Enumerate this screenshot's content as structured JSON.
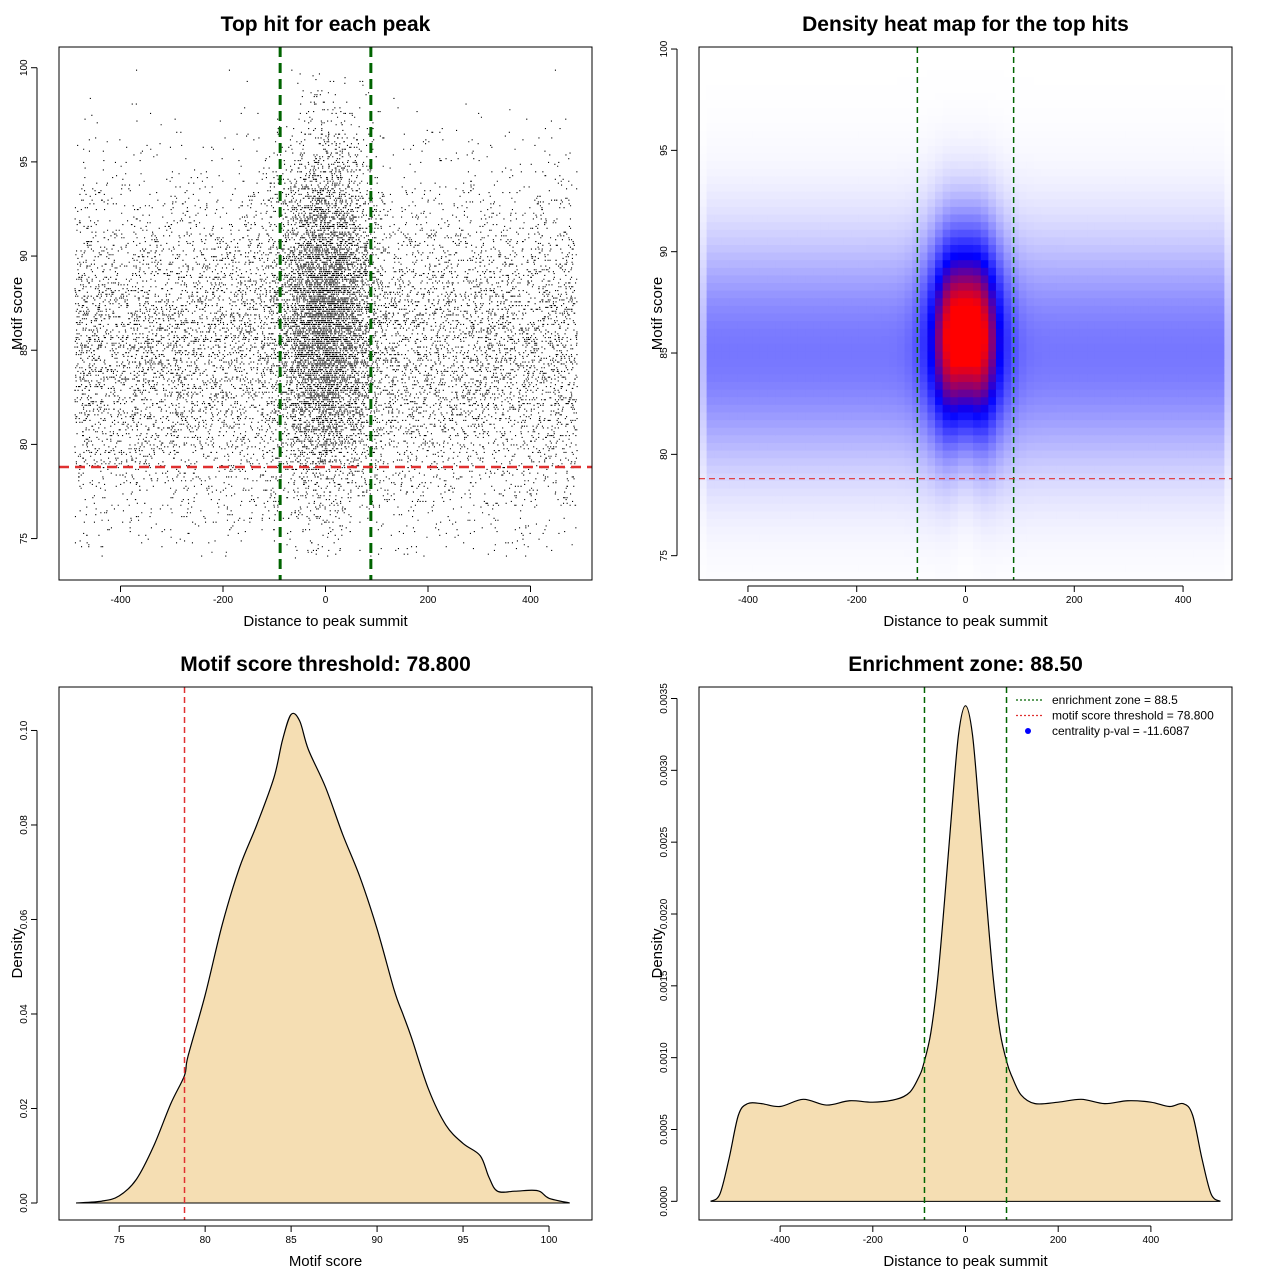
{
  "chart_data": [
    {
      "id": "p1",
      "type": "scatter",
      "title": "Top hit for each peak",
      "xlabel": "Distance to peak summit",
      "ylabel": "Motif score",
      "xlim": [
        -520,
        520
      ],
      "ylim": [
        72.8,
        101.1
      ],
      "xticks": [
        -400,
        -200,
        0,
        200,
        400
      ],
      "yticks": [
        75,
        80,
        85,
        90,
        95,
        100
      ],
      "n_points_approx": 42000,
      "x_range": [
        -490,
        490
      ],
      "y_range": [
        74,
        100
      ],
      "distribution": {
        "background": {
          "x_uniform": [
            -490,
            490
          ],
          "y_mode": 85,
          "y_spread": 4.5
        },
        "center_cluster": {
          "x_center": 0,
          "x_spread": 45,
          "y_mode": 87,
          "y_spread": 4.5
        }
      },
      "vlines": [
        {
          "x": -88.5,
          "color": "#006400",
          "style": "dashed"
        },
        {
          "x": 88.5,
          "color": "#006400",
          "style": "dashed"
        }
      ],
      "hlines": [
        {
          "y": 78.8,
          "color": "#e03030",
          "style": "dashed"
        }
      ],
      "grid": false
    },
    {
      "id": "p2",
      "type": "heatmap",
      "title": "Density heat map for the top hits",
      "xlabel": "Distance to peak summit",
      "ylabel": "Motif score",
      "xlim": [
        -490,
        490
      ],
      "ylim": [
        73.8,
        100.1
      ],
      "xticks": [
        -400,
        -200,
        0,
        200,
        400
      ],
      "yticks": [
        75,
        80,
        85,
        90,
        95,
        100
      ],
      "colormap": [
        "#ffffff",
        "#0000ff",
        "#ff0000"
      ],
      "density": {
        "background_band": {
          "y_mode": 85,
          "y_spread": 4
        },
        "peak": {
          "x": 0,
          "y": 86,
          "x_spread": 40,
          "y_spread": 3.5
        }
      },
      "vlines": [
        {
          "x": -88.5,
          "color": "#006400",
          "style": "dashed"
        },
        {
          "x": 88.5,
          "color": "#006400",
          "style": "dashed"
        }
      ],
      "hlines": [
        {
          "y": 78.8,
          "color": "#e03030",
          "style": "dashed"
        }
      ],
      "grid": false
    },
    {
      "id": "p3",
      "type": "area",
      "title": "Motif score threshold: 78.800",
      "xlabel": "Motif score",
      "ylabel": "Density",
      "xlim": [
        71.5,
        102.5
      ],
      "ylim": [
        -0.0036,
        0.1092
      ],
      "xticks": [
        75,
        80,
        85,
        90,
        95,
        100
      ],
      "yticks": [
        0.0,
        0.02,
        0.04,
        0.06,
        0.08,
        0.1
      ],
      "ytick_labels": [
        "0.00",
        "0.02",
        "0.04",
        "0.06",
        "0.08",
        "0.10"
      ],
      "x": [
        72.5,
        74,
        75,
        76,
        77,
        78,
        78.8,
        79,
        80,
        81,
        82,
        83,
        84,
        84.5,
        85,
        85.5,
        86,
        87,
        88,
        89,
        90,
        91,
        91.5,
        92,
        93,
        94,
        95,
        96,
        96.5,
        97,
        98,
        99,
        99.5,
        100,
        101.2
      ],
      "y": [
        0.0,
        0.0004,
        0.0015,
        0.005,
        0.012,
        0.021,
        0.027,
        0.031,
        0.044,
        0.059,
        0.071,
        0.08,
        0.09,
        0.098,
        0.1034,
        0.102,
        0.096,
        0.088,
        0.078,
        0.069,
        0.058,
        0.045,
        0.04,
        0.035,
        0.024,
        0.0165,
        0.0126,
        0.01,
        0.0055,
        0.0025,
        0.0025,
        0.0027,
        0.0024,
        0.001,
        0.0
      ],
      "fill": "#f5deb3",
      "vlines": [
        {
          "x": 78.8,
          "color": "#e03030",
          "style": "dashed"
        }
      ],
      "grid": false
    },
    {
      "id": "p4",
      "type": "area",
      "title": "Enrichment zone: 88.50",
      "xlabel": "Distance to peak summit",
      "ylabel": "Density",
      "xlim": [
        -575,
        575
      ],
      "ylim": [
        -0.00013,
        0.00358
      ],
      "xticks": [
        -400,
        -200,
        0,
        200,
        400
      ],
      "yticks": [
        0.0,
        0.0005,
        0.001,
        0.0015,
        0.002,
        0.0025,
        0.003,
        0.0035
      ],
      "ytick_labels": [
        "0.0000",
        "0.0005",
        "0.0010",
        "0.0015",
        "0.0020",
        "0.0025",
        "0.0030",
        "0.0035"
      ],
      "x": [
        -550,
        -530,
        -510,
        -490,
        -470,
        -440,
        -400,
        -350,
        -300,
        -250,
        -200,
        -150,
        -120,
        -100,
        -90,
        -75,
        -60,
        -45,
        -30,
        -15,
        0,
        15,
        30,
        45,
        60,
        75,
        90,
        100,
        120,
        150,
        200,
        250,
        300,
        350,
        400,
        440,
        470,
        490,
        510,
        530,
        550
      ],
      "y": [
        0.0,
        5e-05,
        0.0003,
        0.0006,
        0.00068,
        0.00068,
        0.00066,
        0.00071,
        0.00067,
        0.0007,
        0.00069,
        0.00071,
        0.00076,
        0.00087,
        0.00096,
        0.00117,
        0.00155,
        0.0021,
        0.0027,
        0.00325,
        0.00345,
        0.00325,
        0.0027,
        0.0021,
        0.00155,
        0.00117,
        0.00096,
        0.00087,
        0.00074,
        0.00068,
        0.00069,
        0.00071,
        0.00068,
        0.0007,
        0.00069,
        0.00066,
        0.00068,
        0.0006,
        0.0003,
        5e-05,
        0.0
      ],
      "fill": "#f5deb3",
      "vlines": [
        {
          "x": -88.5,
          "color": "#006400",
          "style": "dashed"
        },
        {
          "x": 88.5,
          "color": "#006400",
          "style": "dashed"
        }
      ],
      "legend": {
        "placement": "top-right",
        "entries": [
          {
            "label": "enrichment zone = 88.5",
            "color": "#006400",
            "kind": "dotted-line"
          },
          {
            "label": "motif score threshold = 78.800",
            "color": "#e03030",
            "kind": "dotted-line"
          },
          {
            "label": "centrality p-val = -11.6087",
            "color": "#0000ff",
            "kind": "point"
          }
        ]
      },
      "grid": false
    }
  ]
}
